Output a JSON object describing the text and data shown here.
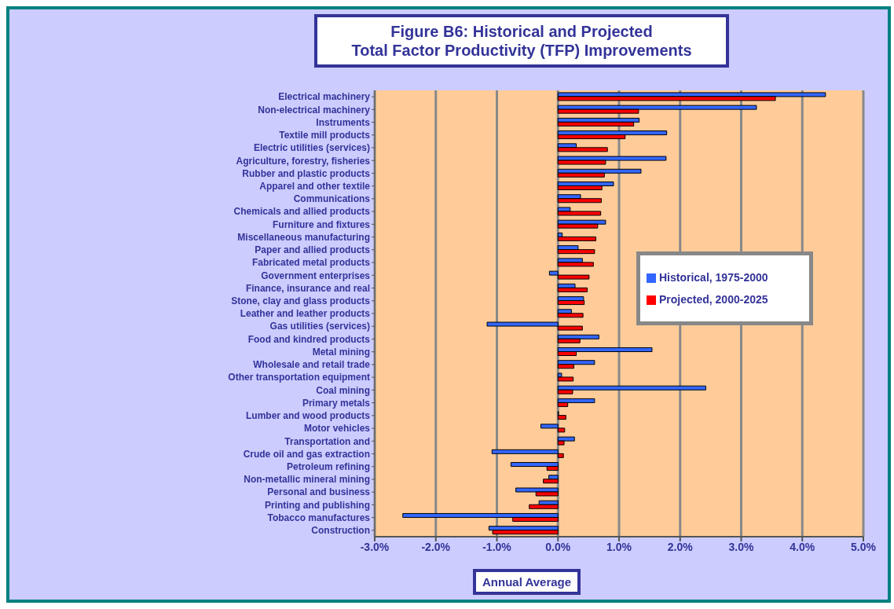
{
  "chart_data": {
    "type": "bar",
    "orientation": "horizontal",
    "title": "Figure B6: Historical and Projected\nTotal Factor Productivity (TFP) Improvements",
    "xlabel": "Annual Average",
    "categories": [
      "Electrical machinery",
      "Non-electrical machinery",
      "Instruments",
      "Textile mill products",
      "Electric utilities (services)",
      "Agriculture, forestry, fisheries",
      "Rubber and plastic products",
      "Apparel and other textile",
      "Communications",
      "Chemicals and allied products",
      "Furniture and fixtures",
      "Miscellaneous manufacturing",
      "Paper and allied products",
      "Fabricated metal products",
      "Government enterprises",
      "Finance, insurance and real",
      "Stone, clay and glass products",
      "Leather and leather products",
      "Gas utilities (services)",
      "Food and kindred products",
      "Metal mining",
      "Wholesale and retail trade",
      "Other transportation equipment",
      "Coal mining",
      "Primary metals",
      "Lumber and wood products",
      "Motor vehicles",
      "Transportation and",
      "Crude oil and gas extraction",
      "Petroleum refining",
      "Non-metallic mineral mining",
      "Personal and business",
      "Printing and publishing",
      "Tobacco manufactures",
      "Construction"
    ],
    "series": [
      {
        "name": "Historical, 1975-2000",
        "color": "#3366ff",
        "values": [
          4.38,
          3.25,
          1.33,
          1.78,
          0.3,
          1.77,
          1.36,
          0.91,
          0.37,
          0.2,
          0.78,
          0.07,
          0.33,
          0.4,
          -0.14,
          0.28,
          0.42,
          0.22,
          -1.16,
          0.67,
          1.54,
          0.6,
          0.06,
          2.42,
          0.6,
          0.01,
          -0.28,
          0.27,
          -1.08,
          -0.77,
          -0.15,
          -0.69,
          -0.31,
          -2.54,
          -1.13
        ]
      },
      {
        "name": "Projected, 2000-2025",
        "color": "#ff0000",
        "values": [
          3.56,
          1.32,
          1.24,
          1.1,
          0.81,
          0.78,
          0.76,
          0.72,
          0.71,
          0.7,
          0.65,
          0.62,
          0.6,
          0.58,
          0.51,
          0.48,
          0.43,
          0.41,
          0.4,
          0.36,
          0.3,
          0.26,
          0.25,
          0.24,
          0.16,
          0.13,
          0.11,
          0.1,
          0.09,
          -0.18,
          -0.24,
          -0.36,
          -0.47,
          -0.74,
          -1.07
        ]
      }
    ],
    "xlim": [
      -3,
      5
    ],
    "xticks": [
      {
        "value": -3,
        "label": "-3.0%"
      },
      {
        "value": -2,
        "label": "-2.0%"
      },
      {
        "value": -1,
        "label": "-1.0%"
      },
      {
        "value": 0,
        "label": "0.0%"
      },
      {
        "value": 1,
        "label": "1.0%"
      },
      {
        "value": 2,
        "label": "2.0%"
      },
      {
        "value": 3,
        "label": "3.0%"
      },
      {
        "value": 4,
        "label": "4.0%"
      },
      {
        "value": 5,
        "label": "5.0%"
      }
    ],
    "grid": "x",
    "legend": "right"
  }
}
